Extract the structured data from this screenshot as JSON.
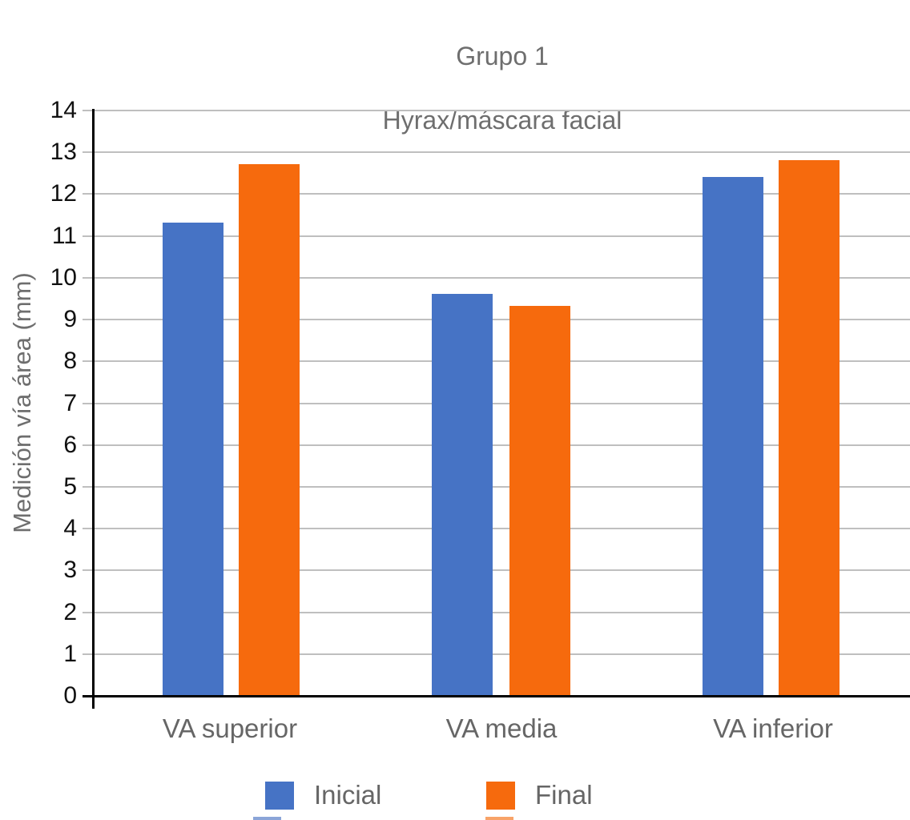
{
  "title": {
    "line1": "Grupo 1",
    "line2": "Hyrax/máscara facial"
  },
  "y_axis_title": "Medición vía área (mm)",
  "chart_data": {
    "type": "bar",
    "title": "Grupo 1",
    "subtitle": "Hyrax/máscara facial",
    "categories": [
      "VA superior",
      "VA media",
      "VA inferior"
    ],
    "series": [
      {
        "name": "Inicial",
        "color": "#4673C5",
        "values": [
          11.3,
          9.6,
          12.4
        ]
      },
      {
        "name": "Final",
        "color": "#F66A0D",
        "values": [
          12.7,
          9.3,
          12.8
        ]
      }
    ],
    "xlabel": "",
    "ylabel": "Medición vía área (mm)",
    "ylim": [
      0,
      14
    ],
    "ytick_step": 1,
    "yticks": [
      0,
      1,
      2,
      3,
      4,
      5,
      6,
      7,
      8,
      9,
      10,
      11,
      12,
      13,
      14
    ],
    "grid": "horizontal",
    "legend_position": "bottom"
  },
  "colors": {
    "grid": "#BFBFBF",
    "axis": "#000000",
    "title_text": "#6E6E6E",
    "tick_text": "#111111",
    "category_text": "#666666",
    "sliver_blue": "#8BA5D8",
    "sliver_orange": "#F8A368"
  }
}
